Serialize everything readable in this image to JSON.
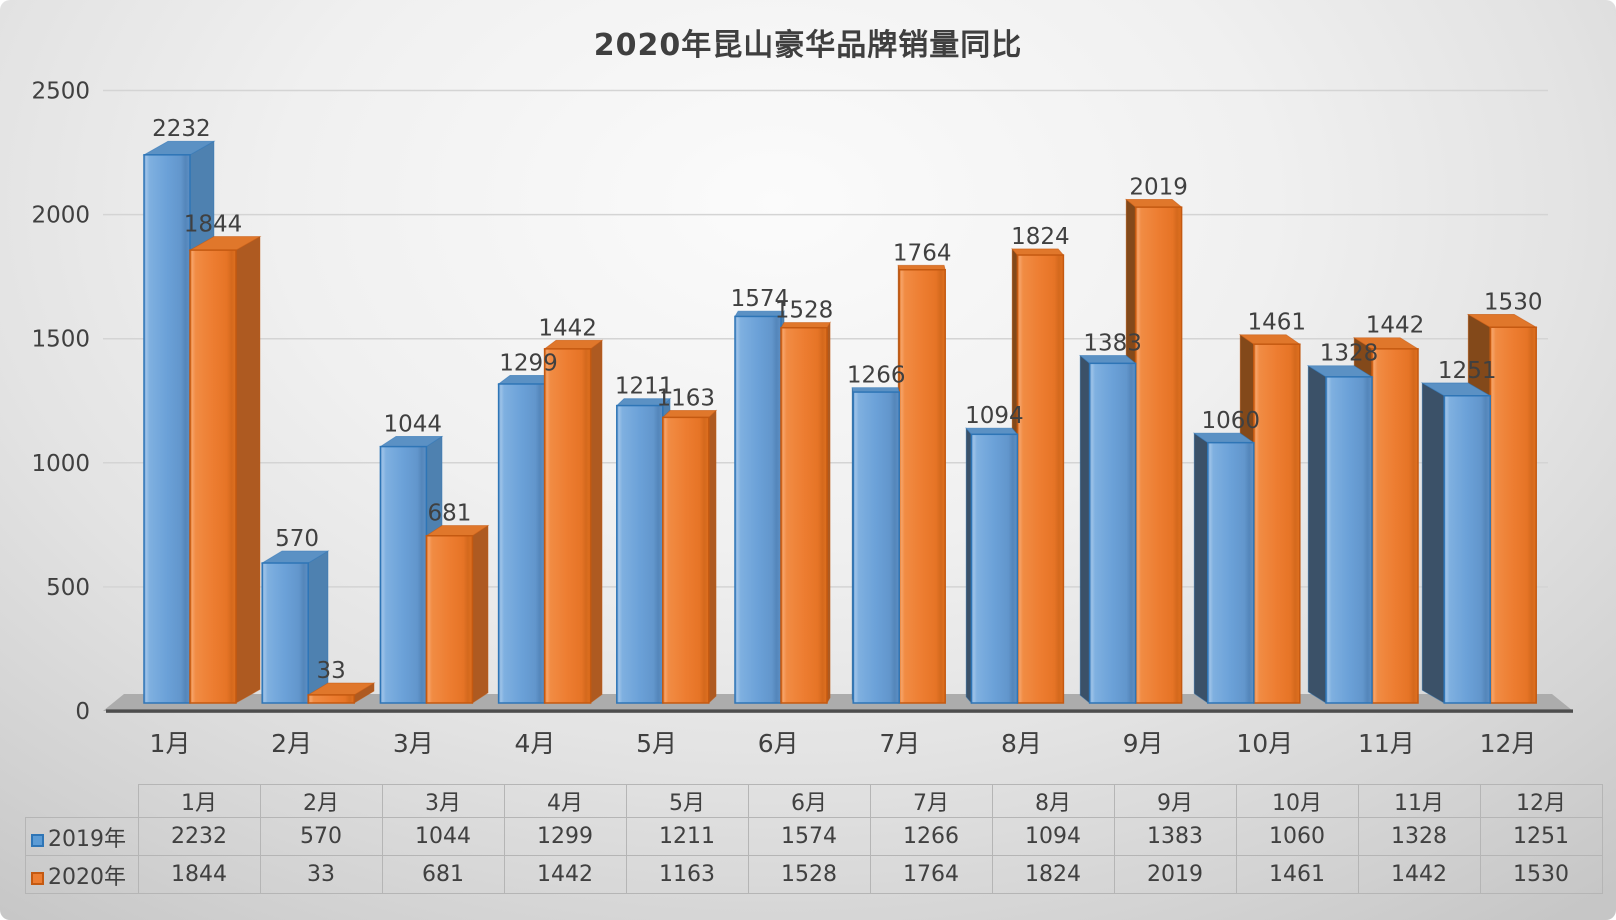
{
  "title": "2020年昆山豪华品牌销量同比",
  "chart_data": {
    "type": "bar",
    "style": "3d-clustered-column-perspective",
    "title": "2020年昆山豪华品牌销量同比",
    "categories": [
      "1月",
      "2月",
      "3月",
      "4月",
      "5月",
      "6月",
      "7月",
      "8月",
      "9月",
      "10月",
      "11月",
      "12月"
    ],
    "series": [
      {
        "name": "2019年",
        "color": "#5B9BD5",
        "outline": "#2E75B6",
        "side_light": "#4E81B0",
        "side_dark": "#3B5168",
        "top": "#5B91C4",
        "values": [
          2232,
          570,
          1044,
          1299,
          1211,
          1574,
          1266,
          1094,
          1383,
          1060,
          1328,
          1251
        ]
      },
      {
        "name": "2020年",
        "color": "#ED7D31",
        "outline": "#C45911",
        "side_light": "#AE5A21",
        "side_dark": "#83491A",
        "top": "#E0772B",
        "values": [
          1844,
          33,
          681,
          1442,
          1163,
          1528,
          1764,
          1824,
          2019,
          1461,
          1442,
          1530
        ]
      }
    ],
    "ylim": [
      0,
      2500
    ],
    "yticks": [
      "0",
      "500",
      "1000",
      "1500",
      "2000",
      "2500"
    ],
    "grid": true,
    "data_labels": true,
    "legend_position": "data-table-left",
    "data_table": true
  },
  "colors": {
    "label": "#404040",
    "grid": "#d4d4d4",
    "axis": "#4d4d4d",
    "floor": "#acacac",
    "table_border": "#b5b5b5",
    "bg_center": "#fbfbfb",
    "bg_edge": "#c6c6c6"
  }
}
